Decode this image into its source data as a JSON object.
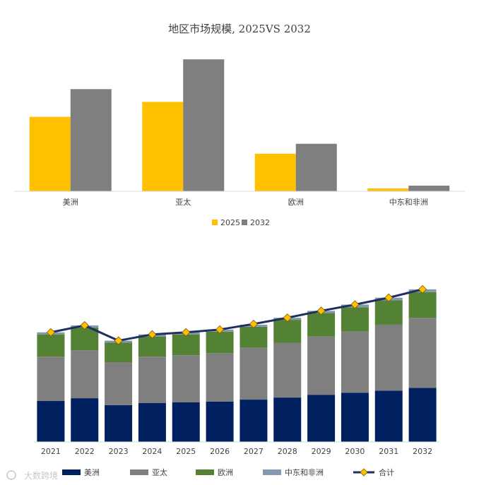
{
  "watermark": "大数跨境",
  "chart_data": [
    {
      "type": "bar",
      "title": "地区市场规模, 2025VS 2032",
      "categories": [
        "美洲",
        "亚太",
        "欧洲",
        "中东和非洲"
      ],
      "series": [
        {
          "name": "2025",
          "color": "#FFC000",
          "values": [
            105,
            126,
            53,
            4
          ]
        },
        {
          "name": "2032",
          "color": "#7F7F7F",
          "values": [
            144,
            186,
            67,
            8
          ]
        }
      ],
      "ylim": [
        0,
        200
      ],
      "grid": false,
      "legend": "bottom",
      "xlabel": "",
      "ylabel": ""
    },
    {
      "type": "bar",
      "stacked": true,
      "title": "",
      "categories": [
        "2021",
        "2022",
        "2023",
        "2024",
        "2025",
        "2026",
        "2027",
        "2028",
        "2029",
        "2030",
        "2031",
        "2032"
      ],
      "series": [
        {
          "name": "美洲",
          "color": "#002060",
          "values": [
            59,
            63,
            53,
            56,
            57,
            58,
            61,
            64,
            68,
            71,
            74,
            78
          ]
        },
        {
          "name": "亚太",
          "color": "#7F7F7F",
          "values": [
            64,
            69,
            62,
            67,
            68,
            70,
            75,
            79,
            84,
            88,
            95,
            101
          ]
        },
        {
          "name": "欧洲",
          "color": "#548235",
          "values": [
            32,
            33,
            28,
            29,
            30,
            31,
            30,
            33,
            34,
            35,
            35,
            37
          ]
        },
        {
          "name": "中东和非洲",
          "color": "#8497B0",
          "values": [
            3,
            3,
            3,
            3,
            3,
            3,
            3,
            3,
            3,
            4,
            4,
            4
          ]
        }
      ],
      "line": {
        "name": "合计",
        "color": "#1F2F5F",
        "marker_color": "#FFC000",
        "values": [
          158,
          168,
          146,
          155,
          158,
          162,
          170,
          179,
          189,
          198,
          208,
          220
        ]
      },
      "ylim": [
        0,
        230
      ],
      "grid": false,
      "legend": "bottom",
      "xlabel": "",
      "ylabel": ""
    }
  ]
}
